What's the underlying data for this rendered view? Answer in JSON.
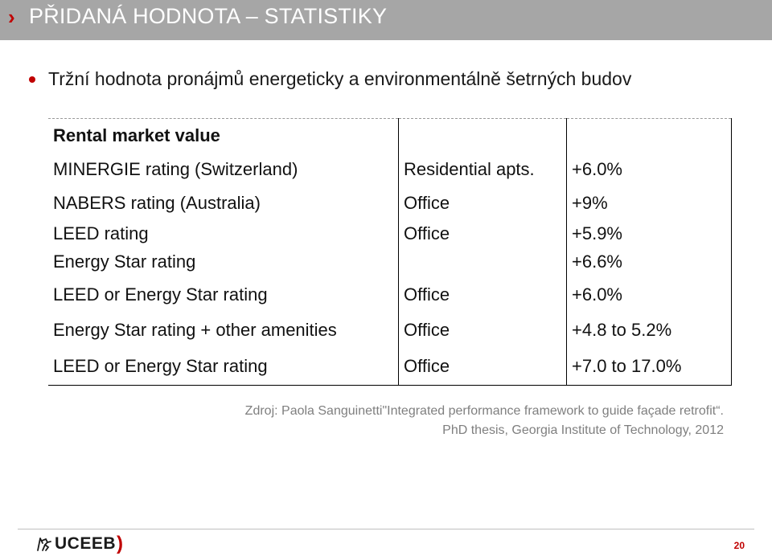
{
  "header": {
    "chevron": "›",
    "title": "PŘIDANÁ HODNOTA – STATISTIKY"
  },
  "bullet": {
    "text": "Tržní hodnota pronájmů energeticky a environmentálně šetrných budov"
  },
  "table": {
    "heading": "Rental market value",
    "rows": [
      {
        "rating": "MINERGIE rating (Switzerland)",
        "type": "Residential apts.",
        "value": "+6.0%"
      },
      {
        "rating": "NABERS rating (Australia)",
        "type": "Office",
        "value": "+9%"
      },
      {
        "rating": "LEED rating",
        "type": "Office",
        "value": "+5.9%"
      },
      {
        "rating": "Energy Star rating",
        "type": "",
        "value": "+6.6%"
      },
      {
        "rating": "LEED or Energy Star rating",
        "type": "Office",
        "value": "+6.0%"
      },
      {
        "rating": "Energy Star rating + other amenities",
        "type": "Office",
        "value": "+4.8 to 5.2%"
      },
      {
        "rating": "LEED or Energy Star rating",
        "type": "Office",
        "value": "+7.0 to 17.0%"
      }
    ]
  },
  "source": {
    "line1": "Zdroj: Paola Sanguinetti\"Integrated performance framework to guide façade retrofit“.",
    "line2": "PhD thesis, Georgia Institute of Technology, 2012"
  },
  "footer": {
    "logo_text": "UCEEB",
    "logo_paren": ")",
    "page_number": "20"
  },
  "colors": {
    "header_bg": "#a6a6a6",
    "accent": "#c00000",
    "source_text": "#7f7f7f"
  },
  "icons": {
    "header_chevron": "chevron-right-icon",
    "logo_mark": "cvut-lion-icon"
  }
}
